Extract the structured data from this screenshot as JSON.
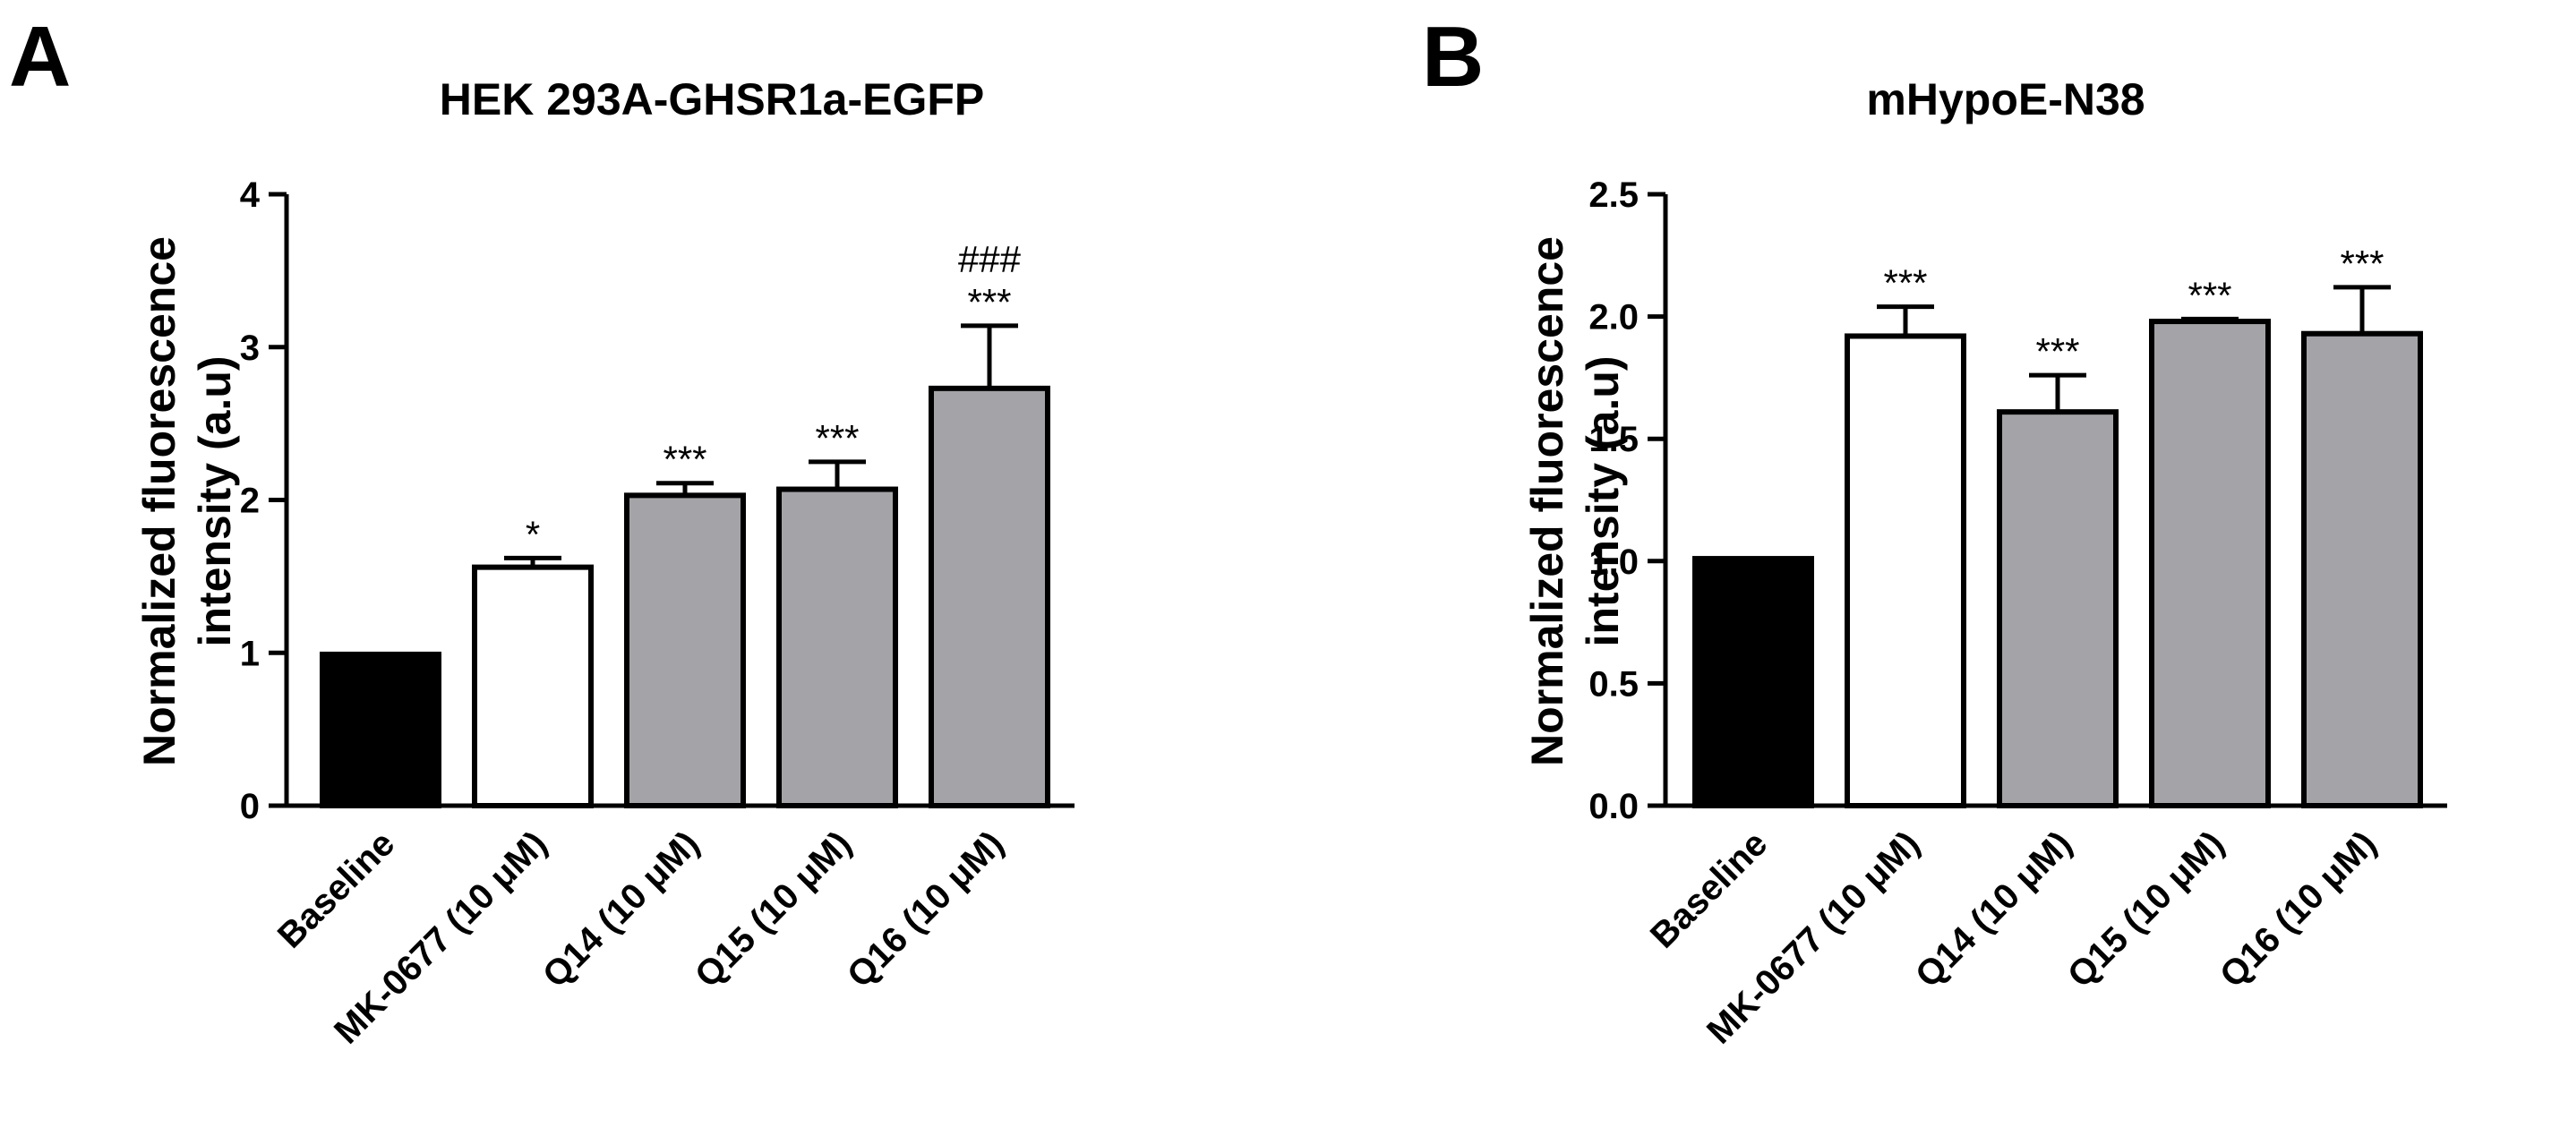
{
  "chart_data": [
    {
      "panel": "A",
      "type": "bar",
      "title": "HEK 293A-GHSR1a-EGFP",
      "ylabel_lines": [
        "Normalized fluorescence",
        "intensity (a.u)"
      ],
      "ylim": [
        0,
        4
      ],
      "yticks": [
        0,
        1,
        2,
        3,
        4
      ],
      "ytick_labels": [
        "0",
        "1",
        "2",
        "3",
        "4"
      ],
      "categories": [
        "Baseline",
        "MK-0677 (10 μM)",
        "Q14 (10 μM)",
        "Q15 (10 μM)",
        "Q16 (10 μM)"
      ],
      "values": [
        0.99,
        1.56,
        2.03,
        2.07,
        2.73
      ],
      "errors": [
        0,
        0.06,
        0.08,
        0.18,
        0.41
      ],
      "bar_colors": [
        "#000000",
        "#ffffff",
        "#a4a4a8",
        "#a4a4a8",
        "#a4a4a8"
      ],
      "significance": [
        [],
        [
          "*"
        ],
        [
          "***"
        ],
        [
          "***"
        ],
        [
          "###",
          "***"
        ]
      ]
    },
    {
      "panel": "B",
      "type": "bar",
      "title": "mHypoE-N38",
      "ylabel_lines": [
        "Normalized fluorescence",
        "intensity (a.u)"
      ],
      "ylim": [
        0,
        2.5
      ],
      "yticks": [
        0,
        0.5,
        1.0,
        1.5,
        2.0,
        2.5
      ],
      "ytick_labels": [
        "0.0",
        "0.5",
        "1.0",
        "1.5",
        "2.0",
        "2.5"
      ],
      "categories": [
        "Baseline",
        "MK-0677 (10 μM)",
        "Q14 (10 μM)",
        "Q15 (10 μM)",
        "Q16 (10 μM)"
      ],
      "values": [
        1.01,
        1.92,
        1.61,
        1.98,
        1.93
      ],
      "errors": [
        0,
        0.12,
        0.15,
        0.01,
        0.19
      ],
      "bar_colors": [
        "#000000",
        "#ffffff",
        "#a4a4a8",
        "#a4a4a8",
        "#a4a4a8"
      ],
      "significance": [
        [],
        [
          "***"
        ],
        [
          "***"
        ],
        [
          "***"
        ],
        [
          "***"
        ]
      ]
    }
  ]
}
